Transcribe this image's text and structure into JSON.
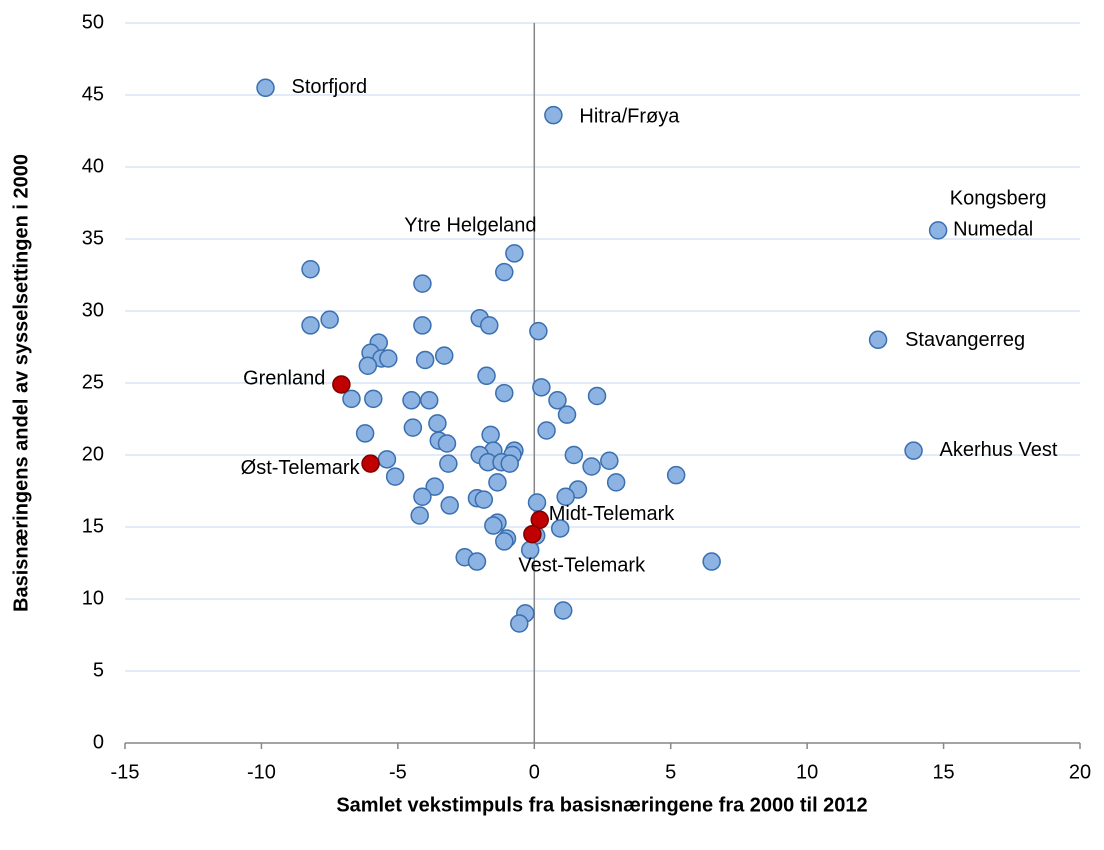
{
  "chart_data": {
    "type": "scatter",
    "xlabel": "Samlet vekstimpuls fra basisnæringene fra 2000 til 2012",
    "ylabel": "Basisnæringens andel av sysselsettingen i 2000",
    "xlim": [
      -15,
      20
    ],
    "xticks": [
      -15,
      -10,
      -5,
      0,
      5,
      10,
      15,
      20
    ],
    "ylim": [
      0,
      50
    ],
    "yticks": [
      0,
      5,
      10,
      15,
      20,
      25,
      30,
      35,
      40,
      45,
      50
    ],
    "grid": true,
    "series": [
      {
        "color": "#8db3e2",
        "edge": "#3a6fb0",
        "x": [
          -9.85,
          0.7,
          14.8,
          12.6,
          13.9,
          -0.73,
          6.5,
          5.2,
          -1.1,
          -8.2,
          -4.1,
          -8.2,
          -7.5,
          -2.0,
          -1.65,
          -4.1,
          0.15,
          -5.7,
          -6.0,
          -5.6,
          -5.35,
          -6.1,
          -3.3,
          -4.0,
          -1.75,
          0.26,
          -1.1,
          2.3,
          -6.7,
          -5.9,
          -4.5,
          -3.85,
          0.85,
          1.2,
          -3.55,
          0.45,
          -4.45,
          -6.2,
          -1.6,
          -3.5,
          -3.2,
          -0.73,
          -1.5,
          -2.0,
          -0.8,
          1.45,
          -5.4,
          -3.15,
          -1.7,
          -1.2,
          -0.9,
          2.75,
          2.1,
          -5.1,
          3.0,
          -1.35,
          -3.65,
          1.6,
          -4.1,
          1.15,
          -2.1,
          -1.85,
          0.1,
          -3.1,
          -4.2,
          -1.35,
          -1.5,
          0.95,
          0.07,
          -1.0,
          -1.1,
          -0.15,
          -2.55,
          -2.1,
          -0.33,
          1.06,
          -0.55
        ],
        "y": [
          45.5,
          43.6,
          35.6,
          28.0,
          20.3,
          34.0,
          12.6,
          18.6,
          32.7,
          32.9,
          31.9,
          29.0,
          29.4,
          29.5,
          29.0,
          29.0,
          28.6,
          27.8,
          27.1,
          26.7,
          26.7,
          26.2,
          26.9,
          26.6,
          25.5,
          24.7,
          24.3,
          24.1,
          23.9,
          23.9,
          23.8,
          23.8,
          23.8,
          22.8,
          22.2,
          21.7,
          21.9,
          21.5,
          21.4,
          21.0,
          20.8,
          20.3,
          20.3,
          20.0,
          20.0,
          20.0,
          19.7,
          19.4,
          19.5,
          19.5,
          19.4,
          19.6,
          19.2,
          18.5,
          18.1,
          18.1,
          17.8,
          17.6,
          17.1,
          17.1,
          17.0,
          16.9,
          16.7,
          16.5,
          15.8,
          15.3,
          15.1,
          14.9,
          14.4,
          14.2,
          14.0,
          13.4,
          12.9,
          12.6,
          9.0,
          9.2,
          8.3
        ],
        "labels": [
          "Storfjord",
          "Hitra/Frøya",
          "Kongsberg Numedal",
          "Stavangerreg",
          "Akerhus Vest",
          "Ytre Helgeland"
        ]
      },
      {
        "color": "#c00000",
        "edge": "#7f0000",
        "x": [
          -7.07,
          -6.0,
          0.2,
          -0.07
        ],
        "y": [
          24.9,
          19.4,
          15.5,
          14.5
        ],
        "labels": [
          "Grenland",
          "Øst-Telemark",
          "Midt-Telemark",
          "Vest-Telemark"
        ]
      }
    ]
  }
}
